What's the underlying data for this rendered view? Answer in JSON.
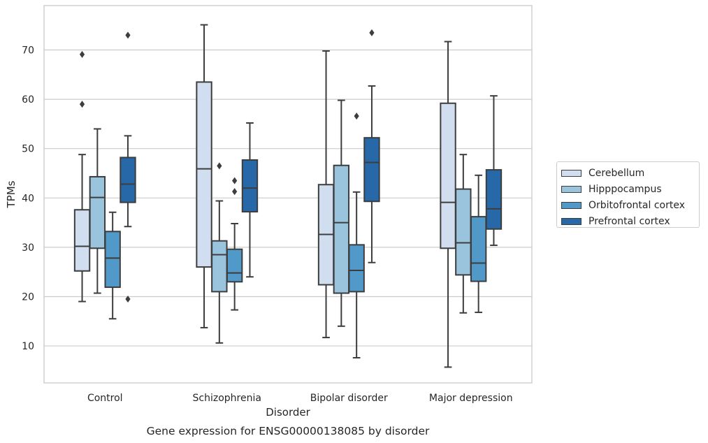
{
  "chart_data": {
    "type": "box",
    "title": "Gene expression for ENSG00000138085 by disorder",
    "xlabel": "Disorder",
    "ylabel": "TPMs",
    "ylim": [
      2.5,
      79
    ],
    "yticks": [
      10,
      20,
      30,
      40,
      50,
      60,
      70
    ],
    "grid": "horizontal",
    "legend_position": "right",
    "categories": [
      "Control",
      "Schizophrenia",
      "Bipolar disorder",
      "Major depression"
    ],
    "series": [
      {
        "name": "Cerebellum",
        "color": "#d0deef",
        "boxes": [
          {
            "whisker_low": 19.0,
            "q1": 25.2,
            "median": 30.2,
            "q3": 37.6,
            "whisker_high": 48.8,
            "outliers": [
              59.0,
              69.1
            ]
          },
          {
            "whisker_low": 13.7,
            "q1": 26.0,
            "median": 45.9,
            "q3": 63.5,
            "whisker_high": 75.1,
            "outliers": []
          },
          {
            "whisker_low": 11.7,
            "q1": 22.4,
            "median": 32.6,
            "q3": 42.7,
            "whisker_high": 69.8,
            "outliers": []
          },
          {
            "whisker_low": 5.7,
            "q1": 29.8,
            "median": 39.1,
            "q3": 59.2,
            "whisker_high": 71.7,
            "outliers": []
          }
        ]
      },
      {
        "name": "Hipppocampus",
        "color": "#9ac4dd",
        "boxes": [
          {
            "whisker_low": 20.7,
            "q1": 29.8,
            "median": 40.1,
            "q3": 44.3,
            "whisker_high": 54.0,
            "outliers": []
          },
          {
            "whisker_low": 10.6,
            "q1": 21.0,
            "median": 28.5,
            "q3": 31.3,
            "whisker_high": 39.4,
            "outliers": [
              46.5
            ]
          },
          {
            "whisker_low": 14.0,
            "q1": 20.7,
            "median": 35.0,
            "q3": 46.6,
            "whisker_high": 59.8,
            "outliers": []
          },
          {
            "whisker_low": 16.7,
            "q1": 24.4,
            "median": 30.9,
            "q3": 41.8,
            "whisker_high": 48.8,
            "outliers": []
          }
        ]
      },
      {
        "name": "Orbitofrontal cortex",
        "color": "#5199c8",
        "boxes": [
          {
            "whisker_low": 15.5,
            "q1": 21.9,
            "median": 27.8,
            "q3": 33.2,
            "whisker_high": 37.1,
            "outliers": []
          },
          {
            "whisker_low": 17.3,
            "q1": 23.0,
            "median": 24.8,
            "q3": 29.6,
            "whisker_high": 34.8,
            "outliers": [
              41.3,
              43.5
            ]
          },
          {
            "whisker_low": 7.6,
            "q1": 21.0,
            "median": 25.3,
            "q3": 30.5,
            "whisker_high": 41.2,
            "outliers": [
              56.6
            ]
          },
          {
            "whisker_low": 16.8,
            "q1": 23.1,
            "median": 26.8,
            "q3": 36.2,
            "whisker_high": 44.6,
            "outliers": []
          }
        ]
      },
      {
        "name": "Prefrontal cortex",
        "color": "#2768a9",
        "boxes": [
          {
            "whisker_low": 34.2,
            "q1": 39.1,
            "median": 42.8,
            "q3": 48.2,
            "whisker_high": 52.6,
            "outliers": [
              19.5,
              73.0
            ]
          },
          {
            "whisker_low": 24.0,
            "q1": 37.2,
            "median": 42.0,
            "q3": 47.7,
            "whisker_high": 55.2,
            "outliers": []
          },
          {
            "whisker_low": 26.9,
            "q1": 39.3,
            "median": 47.2,
            "q3": 52.2,
            "whisker_high": 62.7,
            "outliers": [
              73.5
            ]
          },
          {
            "whisker_low": 30.4,
            "q1": 33.7,
            "median": 37.8,
            "q3": 45.7,
            "whisker_high": 60.7,
            "outliers": []
          }
        ]
      }
    ]
  }
}
